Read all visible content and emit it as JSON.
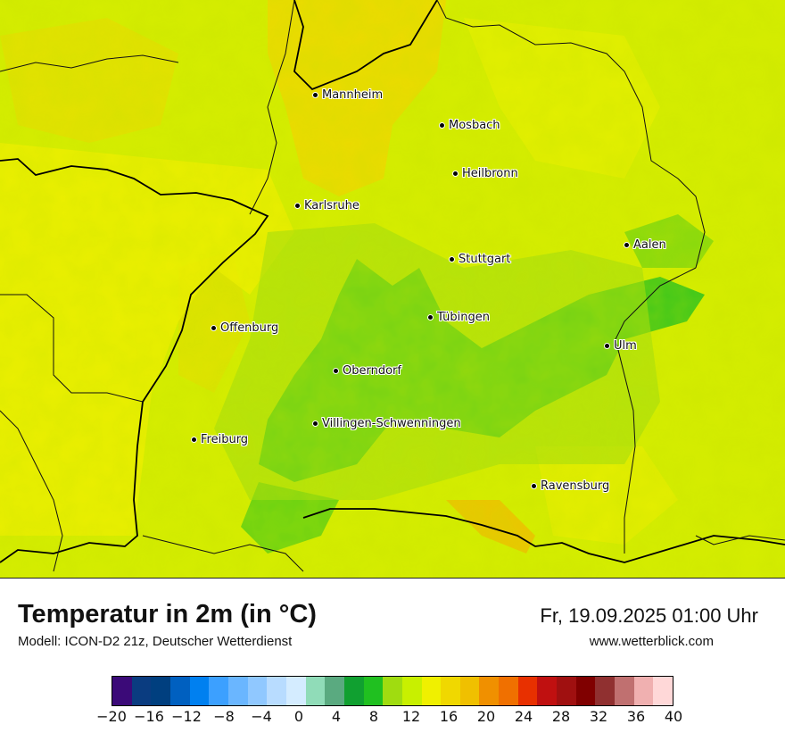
{
  "map": {
    "cities": [
      {
        "name": "Mannheim",
        "key": "mannheim"
      },
      {
        "name": "Mosbach",
        "key": "mosbach"
      },
      {
        "name": "Heilbronn",
        "key": "heilbronn"
      },
      {
        "name": "Karlsruhe",
        "key": "karlsruhe"
      },
      {
        "name": "Aalen",
        "key": "aalen"
      },
      {
        "name": "Stuttgart",
        "key": "stuttgart"
      },
      {
        "name": "Tübingen",
        "key": "tuebingen"
      },
      {
        "name": "Offenburg",
        "key": "offenburg"
      },
      {
        "name": "Ulm",
        "key": "ulm"
      },
      {
        "name": "Oberndorf",
        "key": "oberndorf"
      },
      {
        "name": "Villingen-Schwenningen",
        "key": "villingen-schwenningen"
      },
      {
        "name": "Freiburg",
        "key": "freiburg"
      },
      {
        "name": "Ravensburg",
        "key": "ravensburg"
      }
    ]
  },
  "header": {
    "title": "Temperatur in 2m (in °C)",
    "subtitle": "Modell: ICON-D2 21z, Deutscher Wetterdienst",
    "datetime": "Fr, 19.09.2025 01:00 Uhr",
    "website": "www.wetterblick.com"
  },
  "legend": {
    "colors": [
      "#3b0a78",
      "#0a3c80",
      "#003f7f",
      "#0060c0",
      "#0080f0",
      "#3ca0ff",
      "#6ab6ff",
      "#90c8ff",
      "#b8dcff",
      "#d4ecff",
      "#90dcb8",
      "#5aaa80",
      "#10a030",
      "#20c020",
      "#a0dc10",
      "#c8f000",
      "#f0f000",
      "#f0d800",
      "#f0c000",
      "#f09000",
      "#f07000",
      "#e83000",
      "#c01010",
      "#a01010",
      "#800000",
      "#903030",
      "#c07070",
      "#f0b0b0",
      "#ffd8d8"
    ],
    "tick_labels": [
      "−20",
      "−16",
      "−12",
      "−8",
      "−4",
      "0",
      "4",
      "8",
      "12",
      "16",
      "20",
      "24",
      "28",
      "32",
      "36",
      "40"
    ]
  }
}
